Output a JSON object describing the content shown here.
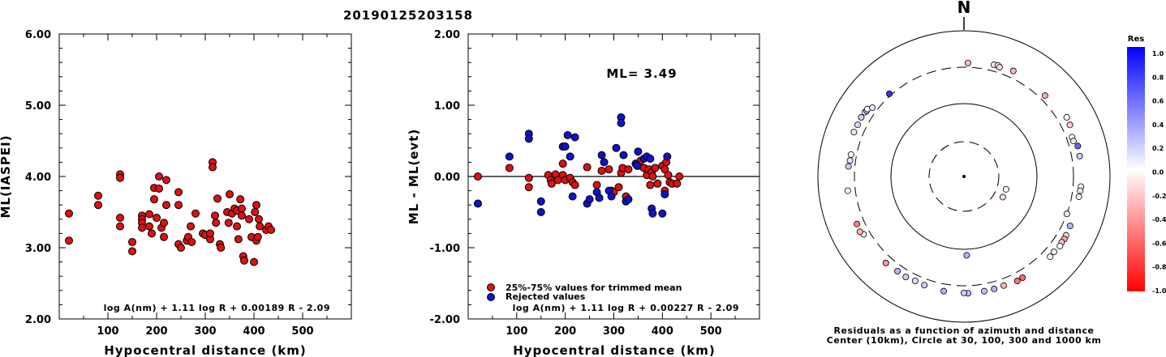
{
  "figure_title": "20190125203158",
  "chart_data": [
    {
      "type": "scatter",
      "xlabel": "Hypocentral distance (km)",
      "ylabel": "ML(IASPEI)",
      "xlim": [
        0,
        600
      ],
      "ylim": [
        2.0,
        6.0
      ],
      "xticks": [
        "100",
        "200",
        "300",
        "400",
        "500"
      ],
      "yticks": [
        "2.00",
        "3.00",
        "4.00",
        "5.00",
        "6.00"
      ],
      "annotation": "log A(nm) + 1.11 log R + 0.00189 R - 2.09",
      "series": [
        {
          "color": "#dd1111",
          "points": [
            [
              20,
              3.48
            ],
            [
              20,
              3.1
            ],
            [
              80,
              3.73
            ],
            [
              80,
              3.6
            ],
            [
              125,
              4.03
            ],
            [
              125,
              3.98
            ],
            [
              125,
              3.42
            ],
            [
              125,
              3.3
            ],
            [
              150,
              3.08
            ],
            [
              150,
              2.95
            ],
            [
              170,
              3.45
            ],
            [
              170,
              3.4
            ],
            [
              170,
              3.35
            ],
            [
              170,
              3.28
            ],
            [
              185,
              3.47
            ],
            [
              185,
              3.3
            ],
            [
              190,
              3.2
            ],
            [
              195,
              3.84
            ],
            [
              195,
              3.68
            ],
            [
              200,
              3.42
            ],
            [
              205,
              4.0
            ],
            [
              205,
              3.83
            ],
            [
              210,
              3.28
            ],
            [
              215,
              3.15
            ],
            [
              215,
              3.35
            ],
            [
              220,
              3.95
            ],
            [
              220,
              3.6
            ],
            [
              245,
              3.78
            ],
            [
              245,
              3.6
            ],
            [
              245,
              3.05
            ],
            [
              250,
              3.0
            ],
            [
              262,
              3.1
            ],
            [
              265,
              3.15
            ],
            [
              270,
              3.3
            ],
            [
              272,
              3.08
            ],
            [
              280,
              3.48
            ],
            [
              295,
              3.2
            ],
            [
              300,
              3.18
            ],
            [
              310,
              3.12
            ],
            [
              310,
              3.2
            ],
            [
              315,
              4.2
            ],
            [
              315,
              4.13
            ],
            [
              320,
              3.45
            ],
            [
              322,
              3.35
            ],
            [
              325,
              3.69
            ],
            [
              330,
              3.05
            ],
            [
              332,
              3.0
            ],
            [
              345,
              3.5
            ],
            [
              348,
              3.35
            ],
            [
              350,
              3.75
            ],
            [
              355,
              3.48
            ],
            [
              360,
              3.55
            ],
            [
              365,
              3.52
            ],
            [
              365,
              3.3
            ],
            [
              368,
              3.12
            ],
            [
              372,
              3.68
            ],
            [
              375,
              3.55
            ],
            [
              375,
              3.45
            ],
            [
              378,
              2.88
            ],
            [
              380,
              2.82
            ],
            [
              390,
              3.4
            ],
            [
              395,
              3.15
            ],
            [
              400,
              2.8
            ],
            [
              402,
              3.5
            ],
            [
              405,
              3.6
            ],
            [
              405,
              3.1
            ],
            [
              408,
              3.15
            ],
            [
              410,
              3.4
            ],
            [
              412,
              3.3
            ],
            [
              425,
              3.25
            ],
            [
              430,
              3.3
            ],
            [
              435,
              3.25
            ]
          ]
        }
      ]
    },
    {
      "type": "scatter",
      "xlabel": "Hypocentral distance (km)",
      "ylabel": "ML - ML(evt)",
      "xlim": [
        0,
        600
      ],
      "ylim": [
        -2.0,
        2.0
      ],
      "xticks": [
        "100",
        "200",
        "300",
        "400",
        "500"
      ],
      "yticks": [
        "-2.00",
        "-1.00",
        "0.00",
        "1.00",
        "2.00"
      ],
      "reference_line": 0.0,
      "annotation_ml": "ML= 3.49",
      "annotation": "log A(nm) + 1.11 log R + 0.00227 R - 2.09",
      "legend": [
        {
          "label": "25%-75% values for trimmed mean",
          "color": "#dd1111"
        },
        {
          "label": "Rejected values",
          "color": "#1111cc"
        }
      ],
      "series": [
        {
          "name": "25%-75% values for trimmed mean",
          "color": "#dd1111",
          "points": [
            [
              20,
              0.0
            ],
            [
              85,
              0.12
            ],
            [
              125,
              -0.02
            ],
            [
              125,
              -0.15
            ],
            [
              165,
              0.02
            ],
            [
              170,
              -0.05
            ],
            [
              172,
              -0.1
            ],
            [
              180,
              0.03
            ],
            [
              185,
              -0.05
            ],
            [
              195,
              0.02
            ],
            [
              195,
              0.18
            ],
            [
              200,
              -0.05
            ],
            [
              210,
              -0.02
            ],
            [
              215,
              -0.08
            ],
            [
              220,
              -0.12
            ],
            [
              245,
              0.13
            ],
            [
              265,
              -0.12
            ],
            [
              275,
              0.08
            ],
            [
              290,
              0.1
            ],
            [
              295,
              -0.2
            ],
            [
              300,
              -0.22
            ],
            [
              310,
              -0.15
            ],
            [
              315,
              0.05
            ],
            [
              318,
              0.12
            ],
            [
              325,
              -0.28
            ],
            [
              330,
              0.1
            ],
            [
              350,
              0.15
            ],
            [
              355,
              0.22
            ],
            [
              362,
              0.12
            ],
            [
              368,
              0.02
            ],
            [
              372,
              0.1
            ],
            [
              375,
              -0.12
            ],
            [
              378,
              0.06
            ],
            [
              380,
              0.0
            ],
            [
              385,
              0.12
            ],
            [
              390,
              -0.1
            ],
            [
              400,
              0.15
            ],
            [
              405,
              -0.2
            ],
            [
              405,
              0.1
            ],
            [
              408,
              0.2
            ],
            [
              412,
              0.02
            ],
            [
              415,
              -0.08
            ],
            [
              420,
              -0.1
            ],
            [
              430,
              -0.1
            ],
            [
              435,
              0.0
            ]
          ]
        },
        {
          "name": "Rejected values",
          "color": "#1111cc",
          "points": [
            [
              20,
              -0.38
            ],
            [
              85,
              0.28
            ],
            [
              125,
              0.6
            ],
            [
              125,
              0.53
            ],
            [
              150,
              -0.35
            ],
            [
              150,
              -0.5
            ],
            [
              195,
              0.42
            ],
            [
              200,
              0.42
            ],
            [
              205,
              0.58
            ],
            [
              210,
              0.28
            ],
            [
              215,
              -0.28
            ],
            [
              220,
              0.55
            ],
            [
              245,
              -0.38
            ],
            [
              250,
              -0.32
            ],
            [
              265,
              -0.22
            ],
            [
              270,
              -0.3
            ],
            [
              275,
              0.3
            ],
            [
              280,
              0.2
            ],
            [
              290,
              -0.2
            ],
            [
              295,
              -0.28
            ],
            [
              305,
              0.4
            ],
            [
              315,
              0.83
            ],
            [
              315,
              0.75
            ],
            [
              320,
              0.3
            ],
            [
              325,
              -0.35
            ],
            [
              330,
              -0.32
            ],
            [
              345,
              0.18
            ],
            [
              348,
              0.15
            ],
            [
              350,
              0.35
            ],
            [
              362,
              0.25
            ],
            [
              368,
              0.28
            ],
            [
              375,
              0.25
            ],
            [
              378,
              -0.45
            ],
            [
              380,
              -0.52
            ],
            [
              400,
              -0.52
            ],
            [
              405,
              -0.25
            ],
            [
              410,
              0.28
            ]
          ]
        }
      ]
    },
    {
      "type": "polar-scatter",
      "north_label": "N",
      "caption_line1": "Residuals as a function of azimuth and distance",
      "caption_line2": "Center (10km), Circle at 30, 100, 300 and 1000 km",
      "colorbar": {
        "title": "Res",
        "ticks": [
          "1.0",
          "0.8",
          "0.6",
          "0.4",
          "0.2",
          "0.0",
          "-0.2",
          "-0.4",
          "-0.6",
          "-0.8",
          "-1.0"
        ]
      },
      "points": [
        {
          "azimuth_deg": 2,
          "distance_km": 345,
          "residual": -0.25
        },
        {
          "azimuth_deg": 15,
          "distance_km": 370,
          "residual": -0.1
        },
        {
          "azimuth_deg": 17,
          "distance_km": 375,
          "residual": 0.0
        },
        {
          "azimuth_deg": 18,
          "distance_km": 360,
          "residual": -0.15
        },
        {
          "azimuth_deg": 25,
          "distance_km": 380,
          "residual": -0.3
        },
        {
          "azimuth_deg": 45,
          "distance_km": 355,
          "residual": -0.35
        },
        {
          "azimuth_deg": 60,
          "distance_km": 405,
          "residual": 0.0
        },
        {
          "azimuth_deg": 64,
          "distance_km": 395,
          "residual": -0.2
        },
        {
          "azimuth_deg": 70,
          "distance_km": 360,
          "residual": 0.0
        },
        {
          "azimuth_deg": 72,
          "distance_km": 360,
          "residual": 0.1
        },
        {
          "azimuth_deg": 75,
          "distance_km": 395,
          "residual": 0.6
        },
        {
          "azimuth_deg": 80,
          "distance_km": 390,
          "residual": 0.2
        },
        {
          "azimuth_deg": 95,
          "distance_km": 390,
          "residual": 0.0
        },
        {
          "azimuth_deg": 97,
          "distance_km": 385,
          "residual": 0.1
        },
        {
          "azimuth_deg": 100,
          "distance_km": 380,
          "residual": 0.05
        },
        {
          "azimuth_deg": 110,
          "distance_km": 300,
          "residual": -0.1
        },
        {
          "azimuth_deg": 115,
          "distance_km": 385,
          "residual": 0.3
        },
        {
          "azimuth_deg": 120,
          "distance_km": 395,
          "residual": -0.2
        },
        {
          "azimuth_deg": 122,
          "distance_km": 400,
          "residual": -0.35
        },
        {
          "azimuth_deg": 124,
          "distance_km": 395,
          "residual": -0.25
        },
        {
          "azimuth_deg": 126,
          "distance_km": 405,
          "residual": 0.0
        },
        {
          "azimuth_deg": 130,
          "distance_km": 390,
          "residual": -0.1
        },
        {
          "azimuth_deg": 133,
          "distance_km": 395,
          "residual": 0.0
        },
        {
          "azimuth_deg": 150,
          "distance_km": 385,
          "residual": -0.6
        },
        {
          "azimuth_deg": 153,
          "distance_km": 390,
          "residual": -0.55
        },
        {
          "azimuth_deg": 160,
          "distance_km": 375,
          "residual": -0.3
        },
        {
          "azimuth_deg": 165,
          "distance_km": 380,
          "residual": 0.3
        },
        {
          "azimuth_deg": 170,
          "distance_km": 380,
          "residual": 0.25
        },
        {
          "azimuth_deg": 178,
          "distance_km": 120,
          "residual": 0.3
        },
        {
          "azimuth_deg": 178,
          "distance_km": 385,
          "residual": 0.25
        },
        {
          "azimuth_deg": 180,
          "distance_km": 380,
          "residual": 0.2
        },
        {
          "azimuth_deg": 190,
          "distance_km": 380,
          "residual": 0.3
        },
        {
          "azimuth_deg": 200,
          "distance_km": 370,
          "residual": 0.2
        },
        {
          "azimuth_deg": 205,
          "distance_km": 365,
          "residual": 0.15
        },
        {
          "azimuth_deg": 210,
          "distance_km": 375,
          "residual": 0.2
        },
        {
          "azimuth_deg": 215,
          "distance_km": 370,
          "residual": 0.3
        },
        {
          "azimuth_deg": 222,
          "distance_km": 380,
          "residual": -0.4
        },
        {
          "azimuth_deg": 240,
          "distance_km": 370,
          "residual": -0.1
        },
        {
          "azimuth_deg": 242,
          "distance_km": 395,
          "residual": -0.3
        },
        {
          "azimuth_deg": 246,
          "distance_km": 385,
          "residual": -0.5
        },
        {
          "azimuth_deg": 263,
          "distance_km": 385,
          "residual": 0.0
        },
        {
          "azimuth_deg": 275,
          "distance_km": 370,
          "residual": 0.2
        },
        {
          "azimuth_deg": 278,
          "distance_km": 360,
          "residual": 0.1
        },
        {
          "azimuth_deg": 281,
          "distance_km": 360,
          "residual": 0.0
        },
        {
          "azimuth_deg": 292,
          "distance_km": 405,
          "residual": 0.1
        },
        {
          "azimuth_deg": 296,
          "distance_km": 400,
          "residual": 0.15
        },
        {
          "azimuth_deg": 300,
          "distance_km": 405,
          "residual": 0.2
        },
        {
          "azimuth_deg": 303,
          "distance_km": 400,
          "residual": 0.0
        },
        {
          "azimuth_deg": 304,
          "distance_km": 390,
          "residual": 0.3
        },
        {
          "azimuth_deg": 305,
          "distance_km": 395,
          "residual": 0.0
        },
        {
          "azimuth_deg": 307,
          "distance_km": 355,
          "residual": 0.1
        },
        {
          "azimuth_deg": 318,
          "distance_km": 320,
          "residual": 0.8
        },
        {
          "azimuth_deg": 107,
          "distance_km": 40,
          "residual": 0.0
        },
        {
          "azimuth_deg": 118,
          "distance_km": 40,
          "residual": -0.15
        }
      ]
    }
  ]
}
